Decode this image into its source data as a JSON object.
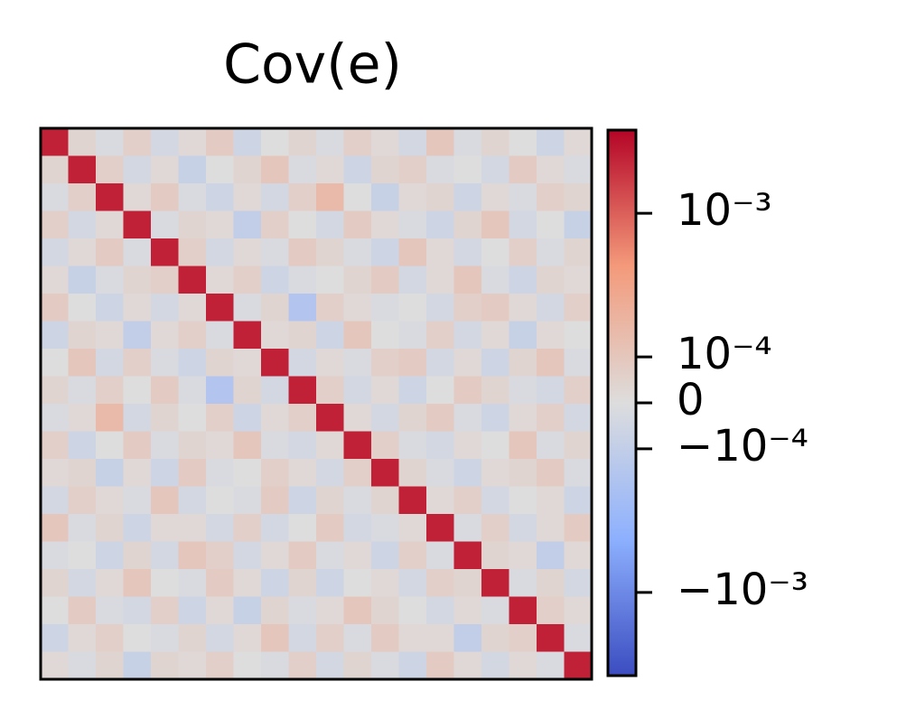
{
  "chart_data": {
    "type": "heatmap",
    "title": "Cov(e)",
    "colormap": "coolwarm",
    "scale": "symlog",
    "linthresh": 0.0001,
    "linscale": 0.32,
    "clim": [
      -0.0038,
      0.0038
    ],
    "cticks": [
      {
        "value": 0.001,
        "label": "10⁻³"
      },
      {
        "value": 0.0001,
        "label": "10⁻⁴"
      },
      0,
      {
        "value": -0.0001,
        "label": "−10⁻⁴"
      },
      {
        "value": -0.001,
        "label": "−10⁻³"
      }
    ],
    "z": [
      [
        0.0025,
        4e-05,
        -2e-05,
        6e-05,
        -4e-05,
        2e-05,
        8e-05,
        -6e-05,
        0,
        4e-05,
        -2e-05,
        6e-05,
        2e-05,
        -4e-05,
        0.0001,
        -2e-05,
        4e-05,
        0,
        -6e-05,
        2e-05
      ],
      [
        4e-05,
        0.0025,
        6e-05,
        -4e-05,
        2e-05,
        -8e-05,
        0,
        4e-05,
        0.0001,
        -2e-05,
        2e-05,
        -6e-05,
        4e-05,
        6e-05,
        -2e-05,
        0,
        -4e-05,
        8e-05,
        2e-05,
        -2e-05
      ],
      [
        -2e-05,
        6e-05,
        0.0025,
        2e-05,
        8e-05,
        -2e-05,
        -6e-05,
        2e-05,
        -4e-05,
        6e-05,
        0.00015,
        0,
        -8e-05,
        2e-05,
        4e-05,
        -6e-05,
        2e-05,
        -2e-05,
        6e-05,
        4e-05
      ],
      [
        6e-05,
        -4e-05,
        2e-05,
        0.0025,
        -2e-05,
        4e-05,
        2e-05,
        -0.0001,
        6e-05,
        0,
        -4e-05,
        8e-05,
        2e-05,
        -2e-05,
        -6e-05,
        4e-05,
        0.0001,
        -4e-05,
        0,
        -8e-05
      ],
      [
        -4e-05,
        2e-05,
        8e-05,
        -2e-05,
        0.0025,
        6e-05,
        -4e-05,
        2e-05,
        -2e-05,
        8e-05,
        4e-05,
        -2e-05,
        -6e-05,
        0.0001,
        2e-05,
        -4e-05,
        0,
        6e-05,
        -2e-05,
        4e-05
      ],
      [
        2e-05,
        -8e-05,
        -2e-05,
        4e-05,
        6e-05,
        0.0025,
        2e-05,
        6e-05,
        -6e-05,
        -2e-05,
        0,
        4e-05,
        8e-05,
        -4e-05,
        2e-05,
        0.0001,
        -2e-05,
        -6e-05,
        4e-05,
        2e-05
      ],
      [
        8e-05,
        0,
        -6e-05,
        2e-05,
        -4e-05,
        2e-05,
        0.0025,
        -2e-05,
        4e-05,
        -0.00015,
        6e-05,
        2e-05,
        -2e-05,
        0,
        -4e-05,
        6e-05,
        8e-05,
        2e-05,
        -4e-05,
        6e-05
      ],
      [
        -6e-05,
        4e-05,
        2e-05,
        -0.0001,
        2e-05,
        6e-05,
        -2e-05,
        0.0025,
        2e-05,
        4e-05,
        -6e-05,
        0.0001,
        0,
        -2e-05,
        6e-05,
        -4e-05,
        2e-05,
        -8e-05,
        2e-05,
        0
      ],
      [
        0,
        0.0001,
        -4e-05,
        6e-05,
        -2e-05,
        -6e-05,
        4e-05,
        2e-05,
        0.0025,
        -4e-05,
        2e-05,
        -2e-05,
        6e-05,
        8e-05,
        -4e-05,
        2e-05,
        -6e-05,
        4e-05,
        0.0001,
        -2e-05
      ],
      [
        4e-05,
        -2e-05,
        6e-05,
        0,
        8e-05,
        -2e-05,
        -0.00015,
        4e-05,
        -4e-05,
        0.0025,
        6e-05,
        -4e-05,
        2e-05,
        -6e-05,
        0,
        8e-05,
        4e-05,
        -2e-05,
        -4e-05,
        6e-05
      ],
      [
        -2e-05,
        2e-05,
        0.00015,
        -4e-05,
        4e-05,
        0,
        6e-05,
        -6e-05,
        2e-05,
        6e-05,
        0.0025,
        2e-05,
        -4e-05,
        4e-05,
        8e-05,
        -2e-05,
        -6e-05,
        2e-05,
        6e-05,
        -4e-05
      ],
      [
        6e-05,
        -6e-05,
        0,
        8e-05,
        -2e-05,
        4e-05,
        2e-05,
        0.0001,
        -2e-05,
        -4e-05,
        2e-05,
        0.0025,
        6e-05,
        -2e-05,
        -4e-05,
        2e-05,
        0,
        0.0001,
        -2e-05,
        4e-05
      ],
      [
        2e-05,
        4e-05,
        -8e-05,
        2e-05,
        -6e-05,
        8e-05,
        -2e-05,
        0,
        6e-05,
        2e-05,
        -4e-05,
        6e-05,
        0.0025,
        4e-05,
        -2e-05,
        -6e-05,
        2e-05,
        4e-05,
        8e-05,
        -2e-05
      ],
      [
        -4e-05,
        6e-05,
        2e-05,
        -2e-05,
        0.0001,
        -4e-05,
        0,
        -2e-05,
        8e-05,
        -6e-05,
        4e-05,
        -2e-05,
        4e-05,
        0.0025,
        2e-05,
        6e-05,
        -4e-05,
        0,
        2e-05,
        -6e-05
      ],
      [
        0.0001,
        -2e-05,
        4e-05,
        -6e-05,
        2e-05,
        2e-05,
        -4e-05,
        6e-05,
        -4e-05,
        0,
        8e-05,
        -4e-05,
        -2e-05,
        2e-05,
        0.0025,
        -2e-05,
        6e-05,
        -4e-05,
        2e-05,
        8e-05
      ],
      [
        -2e-05,
        0,
        -6e-05,
        4e-05,
        -4e-05,
        0.0001,
        6e-05,
        -4e-05,
        2e-05,
        8e-05,
        -2e-05,
        2e-05,
        -6e-05,
        6e-05,
        -2e-05,
        0.0025,
        4e-05,
        2e-05,
        -0.0001,
        2e-05
      ],
      [
        4e-05,
        -4e-05,
        2e-05,
        0.0001,
        0,
        -2e-05,
        8e-05,
        2e-05,
        -6e-05,
        4e-05,
        -6e-05,
        0,
        2e-05,
        -4e-05,
        6e-05,
        4e-05,
        0.0025,
        -2e-05,
        4e-05,
        -4e-05
      ],
      [
        0,
        8e-05,
        -2e-05,
        -4e-05,
        6e-05,
        -6e-05,
        2e-05,
        -8e-05,
        4e-05,
        -2e-05,
        2e-05,
        0.0001,
        4e-05,
        0,
        -4e-05,
        2e-05,
        -2e-05,
        0.0025,
        6e-05,
        2e-05
      ],
      [
        -6e-05,
        2e-05,
        6e-05,
        0,
        -2e-05,
        4e-05,
        -4e-05,
        2e-05,
        0.0001,
        -4e-05,
        6e-05,
        -2e-05,
        8e-05,
        2e-05,
        2e-05,
        -0.0001,
        4e-05,
        6e-05,
        0.0025,
        -2e-05
      ],
      [
        2e-05,
        -2e-05,
        4e-05,
        -8e-05,
        4e-05,
        2e-05,
        6e-05,
        0,
        -2e-05,
        6e-05,
        -4e-05,
        4e-05,
        -2e-05,
        -6e-05,
        8e-05,
        2e-05,
        -4e-05,
        2e-05,
        -2e-05,
        0.0025
      ]
    ]
  }
}
